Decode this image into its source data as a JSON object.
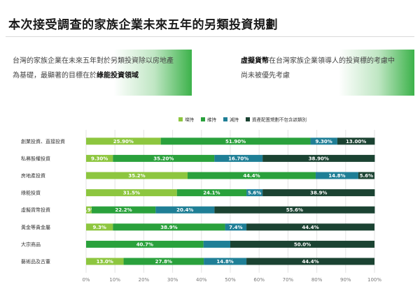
{
  "header": {
    "title": "本次接受調查的家族企業未來五年的另類投資規劃"
  },
  "callouts": {
    "left": {
      "line1": "台灣的家族企業在未來五年對於另類投資除以房地產",
      "line2_prefix": "為基礎，最顯著的目標在於",
      "line2_bold": "綠能投資領域"
    },
    "right": {
      "line1_bold": "虛擬貨幣",
      "line1_rest": "在台灣家族企業領導人的投資標的考慮中",
      "line2": "尚未被優先考慮"
    }
  },
  "chart_data": {
    "type": "bar",
    "orientation": "horizontal",
    "stacked": true,
    "categories": [
      "創業投資、直接投資",
      "私募股權投資",
      "房地產投資",
      "綠能投資",
      "虛擬貨幣投資",
      "黃金等貴金屬",
      "大宗商品",
      "藝術品及古董"
    ],
    "series": [
      {
        "name": "增持",
        "color": "#8dc63f",
        "values": [
          25.9,
          9.3,
          35.2,
          31.5,
          1.9,
          9.3,
          0,
          13.0
        ],
        "labels": [
          "25.90%",
          "9.30%",
          "35.2%",
          "31.5%",
          "1.9%",
          "9.3%",
          "",
          "13.0%"
        ]
      },
      {
        "name": "維持",
        "color": "#2aa13c",
        "values": [
          51.9,
          35.2,
          44.4,
          24.1,
          22.2,
          38.9,
          40.7,
          27.8
        ],
        "labels": [
          "51.90%",
          "35.20%",
          "44.4%",
          "24.1%",
          "22.2%",
          "38.9%",
          "40.7%",
          "27.8%"
        ]
      },
      {
        "name": "減持",
        "color": "#1f7f96",
        "values": [
          9.3,
          16.7,
          14.8,
          5.6,
          20.4,
          7.4,
          9.3,
          14.8
        ],
        "labels": [
          "9.30%",
          "16.70%",
          "14.8%",
          "5.6%",
          "20.4%",
          "7.4%",
          "",
          "14.8%"
        ]
      },
      {
        "name": "資產配置規劃不包含該類別",
        "color": "#1b4332",
        "values": [
          13.0,
          38.9,
          5.6,
          38.9,
          55.6,
          44.4,
          50.0,
          44.4
        ],
        "labels": [
          "13.00%",
          "38.90%",
          "5.6%",
          "38.9%",
          "55.6%",
          "44.4%",
          "50.0%",
          "44.4%"
        ]
      }
    ],
    "xlim": [
      0,
      100
    ],
    "xticks": [
      "0%",
      "10%",
      "20%",
      "30%",
      "40%",
      "50%",
      "60%",
      "70%",
      "80%",
      "90%",
      "100%"
    ],
    "grid": true,
    "legend_position": "top"
  }
}
